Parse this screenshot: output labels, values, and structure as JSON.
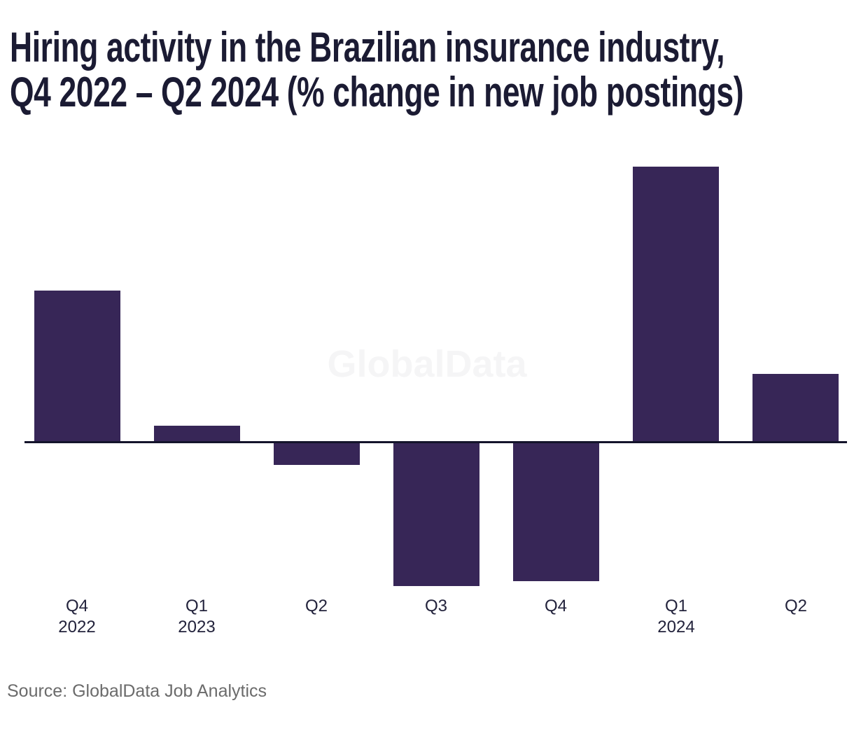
{
  "page": {
    "background": "#ffffff",
    "title_line1": "Hiring activity in the Brazilian insurance industry,",
    "title_line2": "Q4 2022 – Q2 2024 (% change in new job postings)",
    "watermark": "GlobalData",
    "source": "Source: GlobalData Job Analytics"
  },
  "colors": {
    "bar": "#372657",
    "axis_line": "#14142b",
    "title_text": "#1b1b33",
    "tick_text": "#23233c",
    "source_text": "#6b6b6b",
    "watermark_text": "#f5f5f6",
    "background": "#ffffff"
  },
  "chart_data": {
    "type": "bar",
    "title": "Hiring activity in the Brazilian insurance industry, Q4 2022 – Q2 2024 (% change in new job postings)",
    "xlabel": "",
    "ylabel": "% change in new job postings",
    "categories": [
      "Q4 2022",
      "Q1 2023",
      "Q2 2023",
      "Q3 2023",
      "Q4 2023",
      "Q1 2024",
      "Q2 2024"
    ],
    "values": [
      22,
      2.4,
      -3.2,
      -20.8,
      -20.1,
      40,
      9.9
    ],
    "value_precision": "estimated from bar heights; no y-axis or data labels shown",
    "tick_labels": [
      {
        "line1": "Q4",
        "line2": "2022"
      },
      {
        "line1": "Q1",
        "line2": "2023"
      },
      {
        "line1": "Q2",
        "line2": ""
      },
      {
        "line1": "Q3",
        "line2": ""
      },
      {
        "line1": "Q4",
        "line2": ""
      },
      {
        "line1": "Q1",
        "line2": "2024"
      },
      {
        "line1": "Q2",
        "line2": ""
      }
    ],
    "y_axis_visible": false,
    "baseline": 0,
    "grid": false,
    "legend": false,
    "bar_color": "#372657",
    "watermark": "GlobalData",
    "source": "Source: GlobalData Job Analytics"
  }
}
